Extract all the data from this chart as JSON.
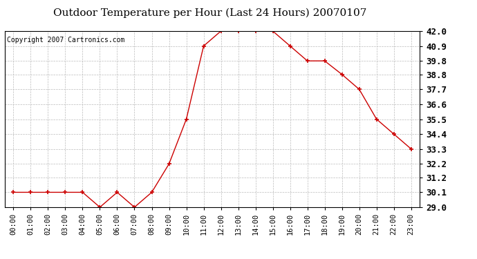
{
  "title": "Outdoor Temperature per Hour (Last 24 Hours) 20070107",
  "copyright_text": "Copyright 2007 Cartronics.com",
  "hours": [
    0,
    1,
    2,
    3,
    4,
    5,
    6,
    7,
    8,
    9,
    10,
    11,
    12,
    13,
    14,
    15,
    16,
    17,
    18,
    19,
    20,
    21,
    22,
    23
  ],
  "hour_labels": [
    "00:00",
    "01:00",
    "02:00",
    "03:00",
    "04:00",
    "05:00",
    "06:00",
    "07:00",
    "08:00",
    "09:00",
    "10:00",
    "11:00",
    "12:00",
    "13:00",
    "14:00",
    "15:00",
    "16:00",
    "17:00",
    "18:00",
    "19:00",
    "20:00",
    "21:00",
    "22:00",
    "23:00"
  ],
  "temps": [
    30.1,
    30.1,
    30.1,
    30.1,
    30.1,
    29.0,
    30.1,
    29.0,
    30.1,
    32.2,
    35.5,
    40.9,
    42.0,
    42.0,
    42.0,
    42.0,
    40.9,
    39.8,
    39.8,
    38.8,
    37.7,
    35.5,
    34.4,
    33.3
  ],
  "line_color": "#cc0000",
  "marker_color": "#cc0000",
  "background_color": "#ffffff",
  "grid_color": "#bbbbbb",
  "ylim_min": 29.0,
  "ylim_max": 42.0,
  "yticks": [
    29.0,
    30.1,
    31.2,
    32.2,
    33.3,
    34.4,
    35.5,
    36.6,
    37.7,
    38.8,
    39.8,
    40.9,
    42.0
  ],
  "title_fontsize": 11,
  "copyright_fontsize": 7,
  "tick_fontsize": 7.5,
  "ytick_fontsize": 9
}
